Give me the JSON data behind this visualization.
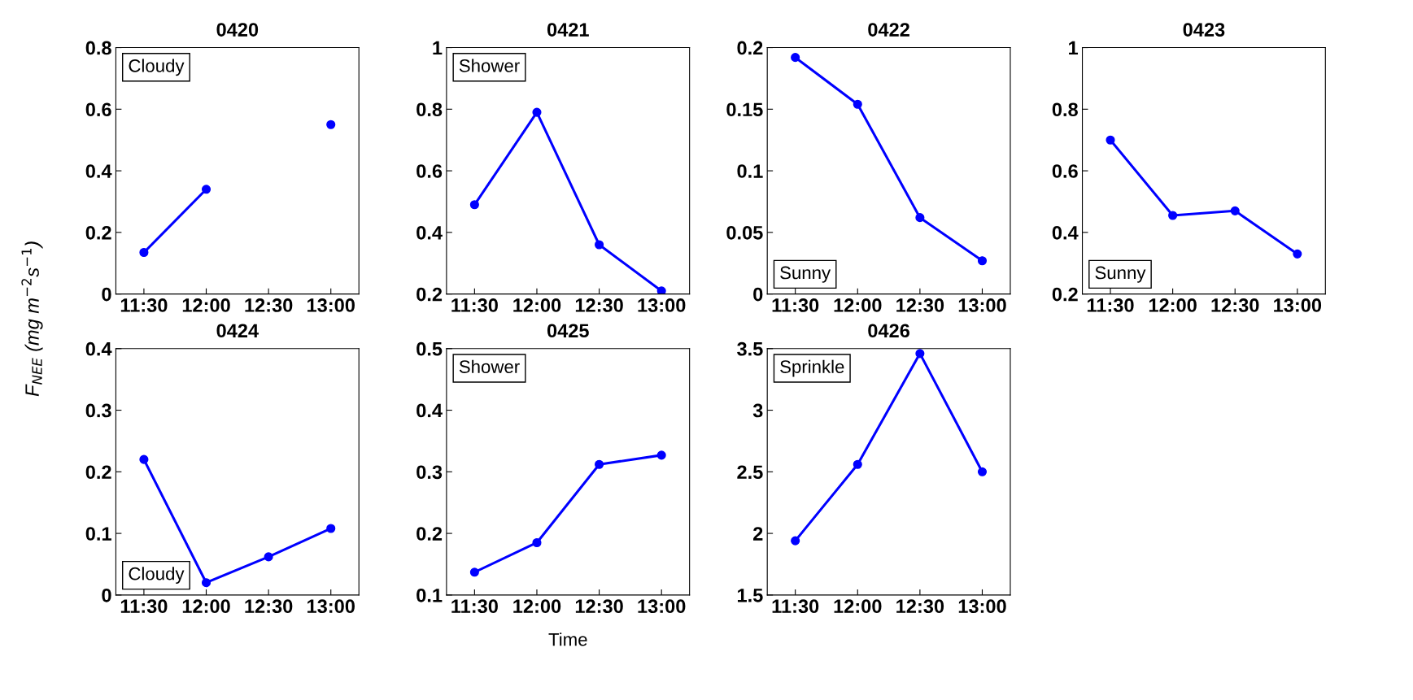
{
  "chart_data": [
    {
      "type": "line",
      "title": "0420",
      "ylabel": "F$_{NEE}$ (mg m$^{−2}$s$^{−1}$)",
      "categories": [
        "11:30",
        "12:00",
        "12:30",
        "13:00"
      ],
      "series": [
        {
          "color": "#0000ff",
          "values": [
            0.135,
            0.34,
            null,
            0.55
          ]
        }
      ],
      "ylim": [
        0,
        0.8
      ],
      "yticks": [
        0,
        0.2,
        0.4,
        0.6,
        0.8
      ],
      "marker": "circle",
      "line_style": "solid",
      "annotations": [
        "Cloudy"
      ]
    },
    {
      "type": "line",
      "title": "0421",
      "categories": [
        "11:30",
        "12:00",
        "12:30",
        "13:00"
      ],
      "series": [
        {
          "color": "#0000ff",
          "values": [
            0.49,
            0.79,
            0.36,
            0.21
          ]
        }
      ],
      "ylim": [
        0.2,
        1
      ],
      "yticks": [
        0.2,
        0.4,
        0.6,
        0.8,
        1
      ],
      "marker": "circle",
      "line_style": "solid",
      "annotations": [
        "Shower"
      ]
    },
    {
      "type": "line",
      "title": "0422",
      "categories": [
        "11:30",
        "12:00",
        "12:30",
        "13:00"
      ],
      "series": [
        {
          "color": "#0000ff",
          "values": [
            0.192,
            0.154,
            0.062,
            0.027
          ]
        }
      ],
      "ylim": [
        0,
        0.2
      ],
      "yticks": [
        0,
        0.05,
        0.1,
        0.15,
        0.2
      ],
      "marker": "circle",
      "line_style": "solid",
      "annotations": [
        "Sunny"
      ]
    },
    {
      "type": "line",
      "title": "0423",
      "categories": [
        "11:30",
        "12:00",
        "12:30",
        "13:00"
      ],
      "series": [
        {
          "color": "#0000ff",
          "values": [
            0.7,
            0.455,
            0.47,
            0.33
          ]
        }
      ],
      "ylim": [
        0.2,
        1
      ],
      "yticks": [
        0.2,
        0.4,
        0.6,
        0.8,
        1
      ],
      "marker": "circle",
      "line_style": "solid",
      "annotations": [
        "Sunny"
      ]
    },
    {
      "type": "line",
      "title": "0424",
      "categories": [
        "11:30",
        "12:00",
        "12:30",
        "13:00"
      ],
      "series": [
        {
          "color": "#0000ff",
          "values": [
            0.22,
            0.02,
            0.062,
            0.108
          ]
        }
      ],
      "ylim": [
        0,
        0.4
      ],
      "yticks": [
        0,
        0.1,
        0.2,
        0.3,
        0.4
      ],
      "marker": "circle",
      "line_style": "solid",
      "annotations": [
        "Cloudy"
      ]
    },
    {
      "type": "line",
      "title": "0425",
      "xlabel": "Time",
      "categories": [
        "11:30",
        "12:00",
        "12:30",
        "13:00"
      ],
      "series": [
        {
          "color": "#0000ff",
          "values": [
            0.137,
            0.185,
            0.312,
            0.327
          ]
        }
      ],
      "ylim": [
        0.1,
        0.5
      ],
      "yticks": [
        0.1,
        0.2,
        0.3,
        0.4,
        0.5
      ],
      "marker": "circle",
      "line_style": "solid",
      "annotations": [
        "Shower"
      ]
    },
    {
      "type": "line",
      "title": "0426",
      "categories": [
        "11:30",
        "12:00",
        "12:30",
        "13:00"
      ],
      "series": [
        {
          "color": "#0000ff",
          "values": [
            1.94,
            2.56,
            3.46,
            2.5
          ]
        }
      ],
      "ylim": [
        1.5,
        3.5
      ],
      "yticks": [
        1.5,
        2,
        2.5,
        3,
        3.5
      ],
      "marker": "circle",
      "line_style": "solid",
      "annotations": [
        "Sprinkle"
      ]
    }
  ]
}
